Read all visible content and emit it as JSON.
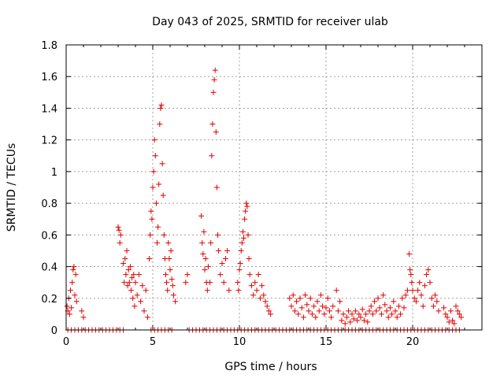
{
  "chart_data": {
    "type": "scatter",
    "title": "Day 043 of 2025, SRMTID for receiver ulab",
    "xlabel": "GPS time / hours",
    "ylabel": "SRMTID / TECUs",
    "xlim": [
      0,
      24
    ],
    "ylim": [
      0,
      1.8
    ],
    "x_ticks": [
      0,
      5,
      10,
      15,
      20
    ],
    "y_ticks": [
      0,
      0.2,
      0.4,
      0.6,
      0.8,
      1,
      1.2,
      1.4,
      1.6,
      1.8
    ],
    "x_tick_labels": [
      "0",
      "5",
      "10",
      "15",
      "20"
    ],
    "y_tick_labels": [
      "0",
      "0.2",
      "0.4",
      "0.6",
      "0.8",
      "1",
      "1.2",
      "1.4",
      "1.6",
      "1.8"
    ],
    "grid": true,
    "marker": "+",
    "marker_color": "#e00000",
    "series": [
      {
        "name": "SRMTID",
        "points": [
          [
            0.05,
            0.15
          ],
          [
            0.1,
            0.12
          ],
          [
            0.15,
            0.2
          ],
          [
            0.2,
            0.1
          ],
          [
            0.25,
            0.25
          ],
          [
            0.3,
            0.14
          ],
          [
            0.35,
            0.3
          ],
          [
            0.4,
            0.38
          ],
          [
            0.45,
            0.4
          ],
          [
            0.5,
            0.22
          ],
          [
            0.55,
            0.35
          ],
          [
            0.6,
            0.18
          ],
          [
            0.9,
            0.12
          ],
          [
            1.0,
            0.08
          ],
          [
            3.0,
            0.65
          ],
          [
            3.05,
            0.63
          ],
          [
            3.1,
            0.55
          ],
          [
            3.15,
            0.6
          ],
          [
            3.3,
            0.42
          ],
          [
            3.35,
            0.3
          ],
          [
            3.4,
            0.45
          ],
          [
            3.45,
            0.35
          ],
          [
            3.5,
            0.5
          ],
          [
            3.55,
            0.28
          ],
          [
            3.6,
            0.38
          ],
          [
            3.65,
            0.3
          ],
          [
            3.7,
            0.4
          ],
          [
            3.75,
            0.25
          ],
          [
            3.8,
            0.33
          ],
          [
            3.85,
            0.2
          ],
          [
            3.9,
            0.35
          ],
          [
            3.95,
            0.15
          ],
          [
            4.0,
            0.3
          ],
          [
            4.1,
            0.22
          ],
          [
            4.2,
            0.35
          ],
          [
            4.3,
            0.18
          ],
          [
            4.4,
            0.28
          ],
          [
            4.5,
            0.12
          ],
          [
            4.6,
            0.25
          ],
          [
            4.7,
            0.08
          ],
          [
            4.8,
            0.45
          ],
          [
            4.85,
            0.6
          ],
          [
            4.9,
            0.75
          ],
          [
            4.95,
            0.7
          ],
          [
            5.0,
            0.9
          ],
          [
            5.05,
            1.0
          ],
          [
            5.1,
            1.2
          ],
          [
            5.15,
            1.1
          ],
          [
            5.2,
            0.8
          ],
          [
            5.25,
            0.55
          ],
          [
            5.3,
            0.65
          ],
          [
            5.35,
            0.92
          ],
          [
            5.4,
            1.3
          ],
          [
            5.45,
            1.4
          ],
          [
            5.5,
            1.42
          ],
          [
            5.55,
            1.05
          ],
          [
            5.6,
            0.85
          ],
          [
            5.65,
            0.6
          ],
          [
            5.7,
            0.45
          ],
          [
            5.75,
            0.35
          ],
          [
            5.8,
            0.3
          ],
          [
            5.85,
            0.25
          ],
          [
            5.9,
            0.55
          ],
          [
            5.95,
            0.45
          ],
          [
            6.0,
            0.38
          ],
          [
            6.05,
            0.5
          ],
          [
            6.1,
            0.32
          ],
          [
            6.15,
            0.28
          ],
          [
            6.2,
            0.22
          ],
          [
            6.3,
            0.18
          ],
          [
            6.9,
            0.3
          ],
          [
            7.0,
            0.35
          ],
          [
            7.8,
            0.72
          ],
          [
            7.85,
            0.55
          ],
          [
            7.9,
            0.48
          ],
          [
            7.95,
            0.62
          ],
          [
            8.0,
            0.38
          ],
          [
            8.05,
            0.45
          ],
          [
            8.1,
            0.3
          ],
          [
            8.15,
            0.25
          ],
          [
            8.2,
            0.4
          ],
          [
            8.3,
            0.3
          ],
          [
            8.35,
            0.55
          ],
          [
            8.4,
            1.1
          ],
          [
            8.45,
            1.3
          ],
          [
            8.5,
            1.5
          ],
          [
            8.55,
            1.58
          ],
          [
            8.6,
            1.64
          ],
          [
            8.65,
            1.25
          ],
          [
            8.7,
            0.9
          ],
          [
            8.75,
            0.6
          ],
          [
            8.8,
            0.5
          ],
          [
            8.9,
            0.35
          ],
          [
            9.0,
            0.42
          ],
          [
            9.1,
            0.3
          ],
          [
            9.2,
            0.45
          ],
          [
            9.3,
            0.5
          ],
          [
            9.4,
            0.25
          ],
          [
            9.9,
            0.3
          ],
          [
            9.95,
            0.25
          ],
          [
            10.0,
            0.38
          ],
          [
            10.05,
            0.42
          ],
          [
            10.1,
            0.5
          ],
          [
            10.15,
            0.55
          ],
          [
            10.2,
            0.62
          ],
          [
            10.25,
            0.58
          ],
          [
            10.3,
            0.7
          ],
          [
            10.35,
            0.75
          ],
          [
            10.4,
            0.8
          ],
          [
            10.45,
            0.78
          ],
          [
            10.5,
            0.6
          ],
          [
            10.55,
            0.45
          ],
          [
            10.6,
            0.35
          ],
          [
            10.7,
            0.28
          ],
          [
            10.8,
            0.22
          ],
          [
            10.9,
            0.3
          ],
          [
            11.0,
            0.25
          ],
          [
            11.1,
            0.35
          ],
          [
            11.2,
            0.2
          ],
          [
            11.3,
            0.28
          ],
          [
            11.4,
            0.22
          ],
          [
            11.5,
            0.18
          ],
          [
            11.6,
            0.15
          ],
          [
            11.7,
            0.12
          ],
          [
            11.8,
            0.1
          ],
          [
            12.9,
            0.2
          ],
          [
            13.0,
            0.15
          ],
          [
            13.1,
            0.22
          ],
          [
            13.2,
            0.12
          ],
          [
            13.3,
            0.18
          ],
          [
            13.4,
            0.1
          ],
          [
            13.5,
            0.2
          ],
          [
            13.6,
            0.14
          ],
          [
            13.7,
            0.08
          ],
          [
            13.8,
            0.22
          ],
          [
            13.9,
            0.16
          ],
          [
            14.0,
            0.12
          ],
          [
            14.1,
            0.2
          ],
          [
            14.2,
            0.1
          ],
          [
            14.3,
            0.15
          ],
          [
            14.4,
            0.08
          ],
          [
            14.5,
            0.18
          ],
          [
            14.6,
            0.12
          ],
          [
            14.7,
            0.22
          ],
          [
            14.8,
            0.15
          ],
          [
            14.9,
            0.1
          ],
          [
            15.0,
            0.14
          ],
          [
            15.1,
            0.2
          ],
          [
            15.2,
            0.12
          ],
          [
            15.3,
            0.08
          ],
          [
            15.4,
            0.15
          ],
          [
            15.6,
            0.25
          ],
          [
            15.7,
            0.12
          ],
          [
            15.8,
            0.18
          ],
          [
            15.9,
            0.06
          ],
          [
            16.0,
            0.1
          ],
          [
            16.1,
            0.04
          ],
          [
            16.2,
            0.08
          ],
          [
            16.3,
            0.12
          ],
          [
            16.4,
            0.05
          ],
          [
            16.5,
            0.1
          ],
          [
            16.6,
            0.07
          ],
          [
            16.7,
            0.12
          ],
          [
            16.8,
            0.06
          ],
          [
            16.9,
            0.1
          ],
          [
            17.0,
            0.08
          ],
          [
            17.1,
            0.13
          ],
          [
            17.2,
            0.06
          ],
          [
            17.3,
            0.1
          ],
          [
            17.4,
            0.05
          ],
          [
            17.5,
            0.12
          ],
          [
            17.6,
            0.15
          ],
          [
            17.7,
            0.1
          ],
          [
            17.8,
            0.18
          ],
          [
            17.9,
            0.12
          ],
          [
            18.0,
            0.2
          ],
          [
            18.1,
            0.14
          ],
          [
            18.2,
            0.1
          ],
          [
            18.3,
            0.22
          ],
          [
            18.4,
            0.16
          ],
          [
            18.5,
            0.12
          ],
          [
            18.6,
            0.08
          ],
          [
            18.7,
            0.14
          ],
          [
            18.8,
            0.1
          ],
          [
            18.9,
            0.18
          ],
          [
            19.0,
            0.12
          ],
          [
            19.1,
            0.08
          ],
          [
            19.2,
            0.15
          ],
          [
            19.3,
            0.1
          ],
          [
            19.4,
            0.2
          ],
          [
            19.5,
            0.14
          ],
          [
            19.6,
            0.22
          ],
          [
            19.7,
            0.25
          ],
          [
            19.8,
            0.48
          ],
          [
            19.85,
            0.38
          ],
          [
            19.9,
            0.35
          ],
          [
            19.95,
            0.3
          ],
          [
            20.0,
            0.25
          ],
          [
            20.1,
            0.2
          ],
          [
            20.2,
            0.18
          ],
          [
            20.3,
            0.25
          ],
          [
            20.4,
            0.3
          ],
          [
            20.5,
            0.22
          ],
          [
            20.6,
            0.15
          ],
          [
            20.7,
            0.28
          ],
          [
            20.8,
            0.35
          ],
          [
            20.9,
            0.38
          ],
          [
            21.0,
            0.3
          ],
          [
            21.1,
            0.2
          ],
          [
            21.2,
            0.15
          ],
          [
            21.3,
            0.22
          ],
          [
            21.4,
            0.18
          ],
          [
            21.5,
            0.12
          ],
          [
            21.8,
            0.14
          ],
          [
            21.9,
            0.1
          ],
          [
            22.0,
            0.08
          ],
          [
            22.1,
            0.05
          ],
          [
            22.2,
            0.12
          ],
          [
            22.3,
            0.06
          ],
          [
            22.4,
            0.04
          ],
          [
            22.5,
            0.15
          ],
          [
            22.6,
            0.12
          ],
          [
            22.7,
            0.1
          ],
          [
            22.8,
            0.08
          ]
        ]
      }
    ],
    "zero_markers_x": [
      0.1,
      0.3,
      0.5,
      0.7,
      0.9,
      1.1,
      1.3,
      1.5,
      1.7,
      1.9,
      2.1,
      2.3,
      2.5,
      2.7,
      2.9,
      3.1,
      3.3,
      4.9,
      5.1,
      5.3,
      5.5,
      5.7,
      5.9,
      6.1,
      7.1,
      7.3,
      7.5,
      7.7,
      7.9,
      8.1,
      8.3,
      8.5,
      8.7,
      8.9,
      9.1,
      9.3,
      9.5,
      9.7,
      9.9,
      10.1,
      10.3,
      10.5,
      10.7,
      10.9,
      11.1,
      11.3,
      11.5,
      11.7,
      11.9,
      12.1,
      12.3,
      12.5,
      12.7,
      12.9,
      13.1,
      13.3,
      13.5,
      13.7,
      13.9,
      14.1,
      14.3,
      14.5,
      14.7,
      14.9,
      15.1,
      15.3,
      15.5,
      15.7,
      15.9,
      16.1,
      16.3,
      16.5,
      16.7,
      16.9,
      17.1,
      17.3,
      17.5,
      17.7,
      17.9,
      18.1,
      18.3,
      18.5,
      18.7,
      18.9,
      19.1,
      19.3,
      19.5,
      19.7,
      19.9,
      20.1,
      20.3,
      20.5,
      20.7,
      20.9,
      21.1,
      21.3,
      21.5,
      21.7,
      21.9,
      22.1,
      22.3,
      22.5,
      22.7
    ]
  }
}
